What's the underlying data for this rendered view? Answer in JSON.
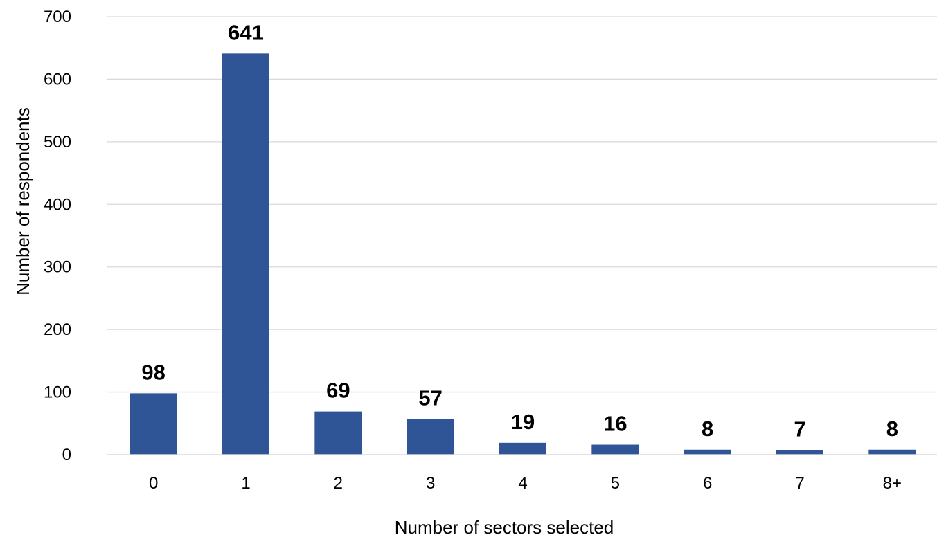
{
  "chart_data": {
    "type": "bar",
    "categories": [
      "0",
      "1",
      "2",
      "3",
      "4",
      "5",
      "6",
      "7",
      "8+"
    ],
    "values": [
      98,
      641,
      69,
      57,
      19,
      16,
      8,
      7,
      8
    ],
    "data_labels": [
      "98",
      "641",
      "69",
      "57",
      "19",
      "16",
      "8",
      "7",
      "8"
    ],
    "xlabel": "Number of sectors selected",
    "ylabel": "Number of respondents",
    "ylim": [
      0,
      700
    ],
    "yticks": [
      0,
      100,
      200,
      300,
      400,
      500,
      600,
      700
    ],
    "grid": true,
    "legend": "none",
    "bar_color": "#2f5597",
    "grid_color": "#d9d9d9"
  }
}
